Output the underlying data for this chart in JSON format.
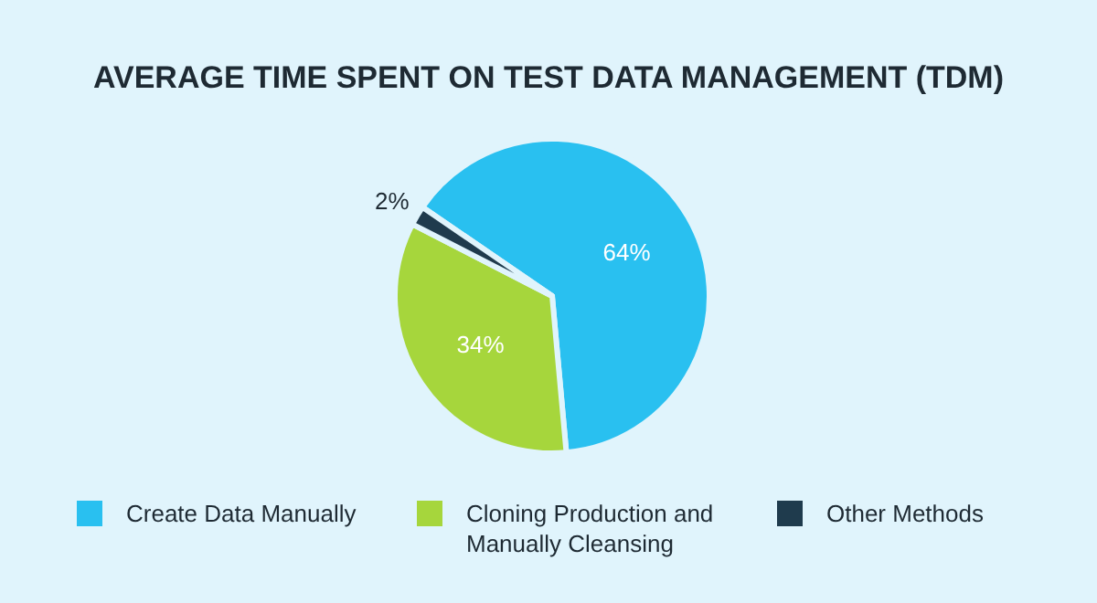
{
  "chart_data": {
    "type": "pie",
    "title": "AVERAGE TIME SPENT ON TEST DATA MANAGEMENT (TDM)",
    "categories": [
      "Create Data Manually",
      "Cloning Production and Manually Cleansing",
      "Other Methods"
    ],
    "values": [
      64,
      34,
      2
    ],
    "colors": [
      "#29c0f0",
      "#a6d63c",
      "#1f3b4d"
    ],
    "value_labels": [
      "64%",
      "34%",
      "2%"
    ],
    "legend": "bottom"
  }
}
